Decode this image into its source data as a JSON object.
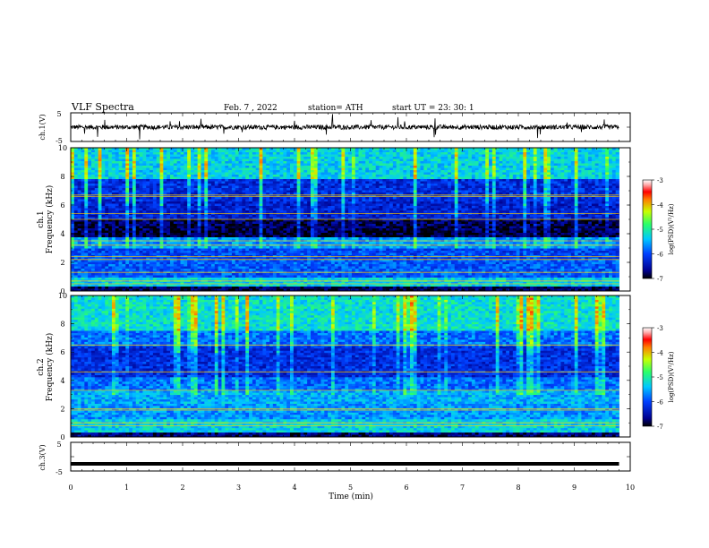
{
  "header": {
    "title": "VLF  Spectra",
    "date": "Feb. 7  , 2022",
    "station": "station= ATH",
    "start": "start  UT  =   23: 30: 1"
  },
  "chart_data": [
    {
      "type": "line",
      "panel": "ch1-waveform",
      "ylabel": "ch.1(V)",
      "ylim": [
        -5,
        5
      ],
      "yticks": [
        "5",
        "-5"
      ],
      "baseline": 0,
      "amplitude_typical": 0.8,
      "color": "#000000"
    },
    {
      "type": "heatmap",
      "panel": "ch1-spectrogram",
      "ylabel_line1": "ch.1",
      "ylabel_line2": "Frequency (kHz)",
      "ylim": [
        0,
        10
      ],
      "yticks": [
        "0",
        "2",
        "4",
        "6",
        "8",
        "10"
      ],
      "colorbar": {
        "label": "log(PSD)(V²/Hz)",
        "range": [
          -7,
          -3
        ],
        "ticks": [
          "-3",
          "-4",
          "-5",
          "-6",
          "-7"
        ]
      },
      "band_levels": [
        {
          "from": 0.0,
          "to": 0.3,
          "level": -6.8
        },
        {
          "from": 0.3,
          "to": 1.0,
          "level": -5.3
        },
        {
          "from": 1.0,
          "to": 2.2,
          "level": -5.9
        },
        {
          "from": 2.2,
          "to": 3.0,
          "level": -6.0
        },
        {
          "from": 3.0,
          "to": 3.8,
          "level": -5.6
        },
        {
          "from": 3.8,
          "to": 4.2,
          "level": -6.9
        },
        {
          "from": 4.2,
          "to": 5.0,
          "level": -6.8
        },
        {
          "from": 5.0,
          "to": 6.3,
          "level": -6.3
        },
        {
          "from": 6.3,
          "to": 7.8,
          "level": -6.2
        },
        {
          "from": 7.8,
          "to": 10.0,
          "level": -5.3
        }
      ],
      "lines_khz": [
        0.5,
        0.7,
        1.3,
        2.2,
        2.4,
        3.2,
        3.5,
        5.0,
        5.4,
        6.6,
        6.7
      ]
    },
    {
      "type": "heatmap",
      "panel": "ch2-spectrogram",
      "ylabel_line1": "ch.2",
      "ylabel_line2": "Frequency (kHz)",
      "ylim": [
        0,
        10
      ],
      "yticks": [
        "0",
        "2",
        "4",
        "6",
        "8",
        "10"
      ],
      "colorbar": {
        "label": "log(PSD)(V²/Hz)",
        "range": [
          -7,
          -3
        ],
        "ticks": [
          "-3",
          "-4",
          "-5",
          "-6",
          "-7"
        ]
      },
      "band_levels": [
        {
          "from": 0.0,
          "to": 0.3,
          "level": -6.7
        },
        {
          "from": 0.3,
          "to": 1.2,
          "level": -5.3
        },
        {
          "from": 1.2,
          "to": 2.3,
          "level": -5.6
        },
        {
          "from": 2.3,
          "to": 3.3,
          "level": -5.5
        },
        {
          "from": 3.3,
          "to": 4.2,
          "level": -5.8
        },
        {
          "from": 4.2,
          "to": 6.4,
          "level": -6.2
        },
        {
          "from": 6.4,
          "to": 7.5,
          "level": -5.8
        },
        {
          "from": 7.5,
          "to": 10.0,
          "level": -5.2
        }
      ],
      "lines_khz": [
        0.8,
        1.0,
        1.9,
        2.0,
        3.3,
        4.6,
        6.5
      ]
    },
    {
      "type": "line",
      "panel": "ch3-waveform",
      "ylabel": "ch.3(V)",
      "ylim": [
        -5,
        5
      ],
      "yticks": [
        "5",
        "-5"
      ],
      "baseline": -2.5,
      "color": "#000000"
    }
  ],
  "xaxis": {
    "label": "Time  (min)",
    "range": [
      0,
      10
    ],
    "data_end": 9.8,
    "ticks": [
      "0",
      "1",
      "2",
      "3",
      "4",
      "5",
      "6",
      "7",
      "8",
      "9",
      "10"
    ]
  }
}
